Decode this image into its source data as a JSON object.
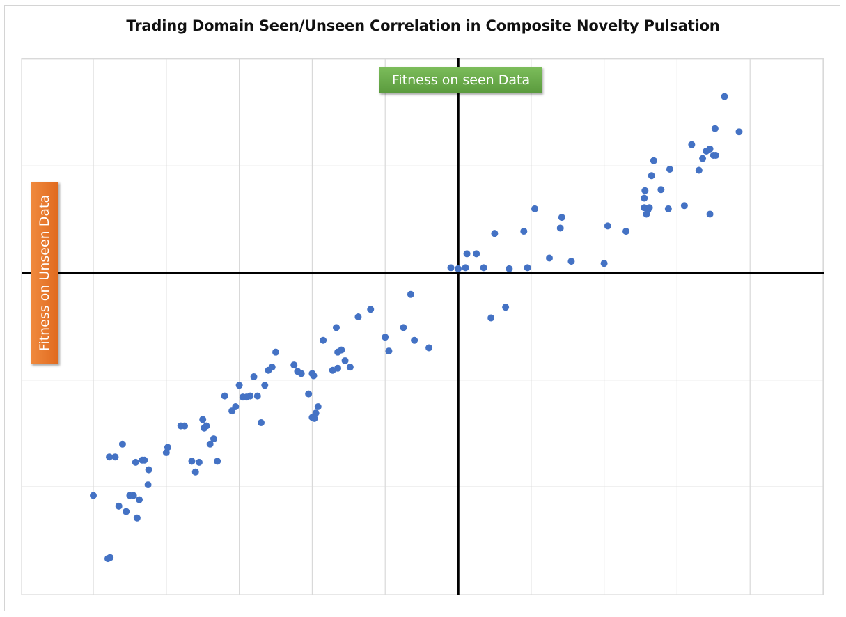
{
  "chart_data": {
    "type": "scatter",
    "title": "Trading Domain Seen/Unseen Correlation in Composite Novelty Pulsation",
    "xlabel": "Fitness on seen Data",
    "ylabel": "Fitness on Unseen Data",
    "xlim": [
      -6,
      5
    ],
    "ylim": [
      -3,
      2
    ],
    "grid": true,
    "legend": "none",
    "marker_color": "#4472c4",
    "series": [
      {
        "x": [
          -5.0,
          -4.8,
          -4.78,
          -4.77,
          -4.7,
          -4.65,
          -4.6,
          -4.55,
          -4.5,
          -4.45,
          -4.42,
          -4.4,
          -4.37,
          -4.33,
          -4.3,
          -4.25,
          -4.24,
          -4.0,
          -3.98,
          -3.8,
          -3.75,
          -3.65,
          -3.6,
          -3.55,
          -3.5,
          -3.48,
          -3.45,
          -3.4,
          -3.35,
          -3.3,
          -3.2,
          -3.1,
          -3.05,
          -3.0,
          -2.95,
          -2.9,
          -2.85,
          -2.8,
          -2.75,
          -2.7,
          -2.65,
          -2.6,
          -2.55,
          -2.5,
          -2.25,
          -2.2,
          -2.15,
          -2.05,
          -2.0,
          -2.0,
          -1.98,
          -1.97,
          -1.95,
          -1.92,
          -1.85,
          -1.72,
          -1.67,
          -1.65,
          -1.65,
          -1.6,
          -1.55,
          -1.48,
          -1.37,
          -1.2,
          -1.0,
          -0.95,
          -0.75,
          -0.65,
          -0.6,
          -0.4,
          -0.1,
          0.0,
          0.1,
          0.12,
          0.25,
          0.35,
          0.45,
          0.5,
          0.65,
          0.7,
          0.9,
          0.95,
          1.05,
          1.25,
          1.4,
          1.42,
          1.55,
          2.0,
          2.05,
          2.3,
          2.55,
          2.55,
          2.56,
          2.58,
          2.6,
          2.62,
          2.65,
          2.68,
          2.78,
          2.88,
          2.9,
          3.1,
          3.2,
          3.3,
          3.35,
          3.4,
          3.45,
          3.45,
          3.5,
          3.52,
          3.53,
          3.85,
          3.65
        ],
        "y": [
          -2.08,
          -2.67,
          -1.72,
          -2.66,
          -1.72,
          -2.18,
          -1.6,
          -2.23,
          -2.08,
          -2.08,
          -1.77,
          -2.29,
          -2.12,
          -1.75,
          -1.75,
          -1.98,
          -1.84,
          -1.68,
          -1.63,
          -1.43,
          -1.43,
          -1.76,
          -1.86,
          -1.77,
          -1.37,
          -1.45,
          -1.43,
          -1.6,
          -1.55,
          -1.76,
          -1.15,
          -1.29,
          -1.25,
          -1.05,
          -1.16,
          -1.16,
          -1.15,
          -0.97,
          -1.15,
          -1.4,
          -1.05,
          -0.91,
          -0.88,
          -0.74,
          -0.86,
          -0.92,
          -0.94,
          -1.13,
          -1.35,
          -0.94,
          -0.96,
          -1.36,
          -1.31,
          -1.25,
          -0.63,
          -0.91,
          -0.51,
          -0.74,
          -0.89,
          -0.72,
          -0.82,
          -0.88,
          -0.41,
          -0.34,
          -0.6,
          -0.73,
          -0.51,
          -0.2,
          -0.63,
          -0.7,
          0.05,
          0.04,
          0.05,
          0.18,
          0.18,
          0.05,
          -0.42,
          0.37,
          -0.32,
          0.04,
          0.39,
          0.05,
          0.6,
          0.14,
          0.42,
          0.52,
          0.11,
          0.09,
          0.44,
          0.39,
          0.61,
          0.7,
          0.77,
          0.55,
          0.59,
          0.61,
          0.91,
          1.05,
          0.78,
          0.6,
          0.97,
          0.63,
          1.2,
          0.96,
          1.07,
          1.14,
          1.16,
          0.55,
          1.1,
          1.35,
          1.1,
          1.32,
          1.65
        ]
      }
    ]
  }
}
